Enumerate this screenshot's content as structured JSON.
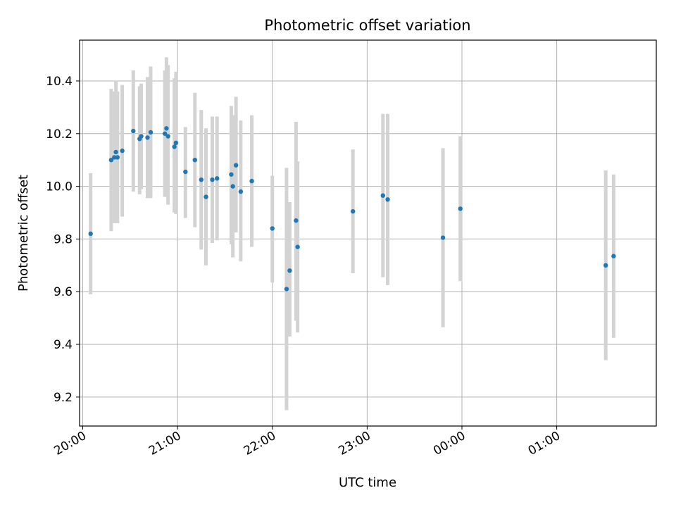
{
  "chart_data": {
    "type": "scatter",
    "title": "Photometric offset variation",
    "xlabel": "UTC time",
    "ylabel": "Photometric offset",
    "x_ticks": [
      "20:00",
      "21:00",
      "22:00",
      "23:00",
      "00:00",
      "01:00"
    ],
    "y_ticks": [
      "9.2",
      "9.4",
      "9.6",
      "9.8",
      "10.0",
      "10.2",
      "10.4"
    ],
    "xlim": [
      "19:58",
      "02:03"
    ],
    "ylim": [
      9.09,
      10.555
    ],
    "grid": true,
    "colors": {
      "points": "#1f77b4",
      "errorbars": "#d3d3d3",
      "grid": "#b0b0b0"
    },
    "series": [
      {
        "points": [
          {
            "x": "20:05",
            "y": 9.82,
            "ylo": 9.59,
            "yhi": 10.05
          },
          {
            "x": "20:18",
            "y": 10.1,
            "ylo": 9.83,
            "yhi": 10.37
          },
          {
            "x": "20:20",
            "y": 10.11,
            "ylo": 9.86,
            "yhi": 10.36
          },
          {
            "x": "20:21",
            "y": 10.13,
            "ylo": 9.86,
            "yhi": 10.4
          },
          {
            "x": "20:22",
            "y": 10.11,
            "ylo": 9.86,
            "yhi": 10.36
          },
          {
            "x": "20:25",
            "y": 10.135,
            "ylo": 9.885,
            "yhi": 10.385
          },
          {
            "x": "20:32",
            "y": 10.21,
            "ylo": 9.98,
            "yhi": 10.44
          },
          {
            "x": "20:36",
            "y": 10.18,
            "ylo": 9.97,
            "yhi": 10.38
          },
          {
            "x": "20:37",
            "y": 10.19,
            "ylo": 9.99,
            "yhi": 10.39
          },
          {
            "x": "20:41",
            "y": 10.185,
            "ylo": 9.955,
            "yhi": 10.415
          },
          {
            "x": "20:43",
            "y": 10.205,
            "ylo": 9.955,
            "yhi": 10.455
          },
          {
            "x": "20:52",
            "y": 10.2,
            "ylo": 9.96,
            "yhi": 10.44
          },
          {
            "x": "20:53",
            "y": 10.22,
            "ylo": 9.96,
            "yhi": 10.49
          },
          {
            "x": "20:54",
            "y": 10.19,
            "ylo": 9.93,
            "yhi": 10.46
          },
          {
            "x": "20:58",
            "y": 10.15,
            "ylo": 9.9,
            "yhi": 10.41
          },
          {
            "x": "20:59",
            "y": 10.165,
            "ylo": 9.895,
            "yhi": 10.435
          },
          {
            "x": "21:05",
            "y": 10.055,
            "ylo": 9.88,
            "yhi": 10.225
          },
          {
            "x": "21:11",
            "y": 10.1,
            "ylo": 9.845,
            "yhi": 10.355
          },
          {
            "x": "21:15",
            "y": 10.025,
            "ylo": 9.76,
            "yhi": 10.29
          },
          {
            "x": "21:18",
            "y": 9.96,
            "ylo": 9.7,
            "yhi": 10.22
          },
          {
            "x": "21:22",
            "y": 10.025,
            "ylo": 9.785,
            "yhi": 10.265
          },
          {
            "x": "21:25",
            "y": 10.03,
            "ylo": 9.795,
            "yhi": 10.265
          },
          {
            "x": "21:34",
            "y": 10.045,
            "ylo": 9.78,
            "yhi": 10.305
          },
          {
            "x": "21:35",
            "y": 10.0,
            "ylo": 9.73,
            "yhi": 10.27
          },
          {
            "x": "21:37",
            "y": 10.08,
            "ylo": 9.825,
            "yhi": 10.34
          },
          {
            "x": "21:40",
            "y": 9.98,
            "ylo": 9.715,
            "yhi": 10.25
          },
          {
            "x": "21:47",
            "y": 10.02,
            "ylo": 9.77,
            "yhi": 10.27
          },
          {
            "x": "22:00",
            "y": 9.84,
            "ylo": 9.635,
            "yhi": 10.04
          },
          {
            "x": "22:09",
            "y": 9.61,
            "ylo": 9.15,
            "yhi": 10.07
          },
          {
            "x": "22:11",
            "y": 9.68,
            "ylo": 9.43,
            "yhi": 9.94
          },
          {
            "x": "22:15",
            "y": 9.87,
            "ylo": 9.49,
            "yhi": 10.245
          },
          {
            "x": "22:16",
            "y": 9.77,
            "ylo": 9.445,
            "yhi": 10.095
          },
          {
            "x": "22:51",
            "y": 9.905,
            "ylo": 9.67,
            "yhi": 10.14
          },
          {
            "x": "23:10",
            "y": 9.965,
            "ylo": 9.655,
            "yhi": 10.275
          },
          {
            "x": "23:13",
            "y": 9.95,
            "ylo": 9.625,
            "yhi": 10.275
          },
          {
            "x": "23:48",
            "y": 9.805,
            "ylo": 9.465,
            "yhi": 10.145
          },
          {
            "x": "23:59",
            "y": 9.915,
            "ylo": 9.64,
            "yhi": 10.19
          },
          {
            "x": "01:31",
            "y": 9.7,
            "ylo": 9.34,
            "yhi": 10.06
          },
          {
            "x": "01:36",
            "y": 9.735,
            "ylo": 9.425,
            "yhi": 10.045
          }
        ]
      }
    ]
  }
}
